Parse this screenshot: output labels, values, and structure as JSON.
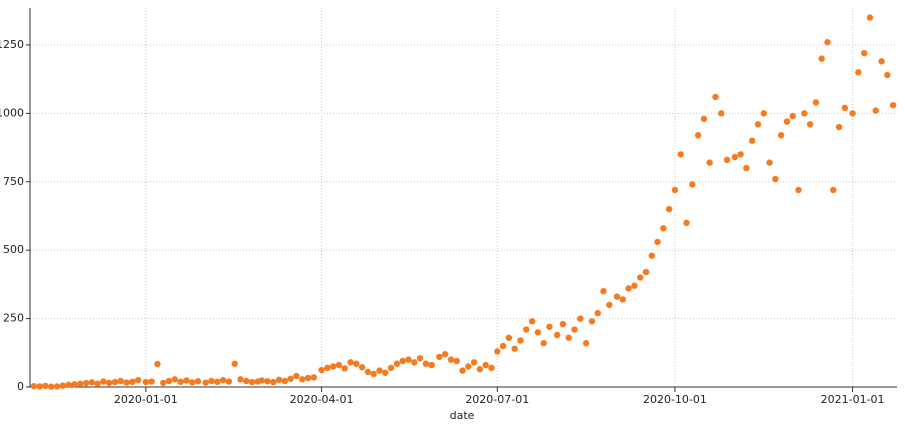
{
  "chart_data": {
    "type": "scatter",
    "x_label": "date",
    "color": "#f47b20",
    "grid": true,
    "xlim": [
      "2019-11-02",
      "2021-01-24"
    ],
    "ylim": [
      0,
      1385
    ],
    "xticks": [
      "2020-01-01",
      "2020-04-01",
      "2020-07-01",
      "2020-10-01",
      "2021-01-01"
    ],
    "yticks": [
      0,
      250,
      500,
      750,
      1000,
      1250
    ],
    "x": [
      "2019-11-04",
      "2019-11-07",
      "2019-11-10",
      "2019-11-13",
      "2019-11-16",
      "2019-11-19",
      "2019-11-22",
      "2019-11-25",
      "2019-11-28",
      "2019-12-01",
      "2019-12-04",
      "2019-12-07",
      "2019-12-10",
      "2019-12-13",
      "2019-12-16",
      "2019-12-19",
      "2019-12-22",
      "2019-12-25",
      "2019-12-28",
      "2020-01-01",
      "2020-01-04",
      "2020-01-07",
      "2020-01-10",
      "2020-01-13",
      "2020-01-16",
      "2020-01-19",
      "2020-01-22",
      "2020-01-25",
      "2020-01-28",
      "2020-02-01",
      "2020-02-04",
      "2020-02-07",
      "2020-02-10",
      "2020-02-13",
      "2020-02-16",
      "2020-02-19",
      "2020-02-22",
      "2020-02-25",
      "2020-02-28",
      "2020-03-01",
      "2020-03-04",
      "2020-03-07",
      "2020-03-10",
      "2020-03-13",
      "2020-03-16",
      "2020-03-19",
      "2020-03-22",
      "2020-03-25",
      "2020-03-28",
      "2020-04-01",
      "2020-04-04",
      "2020-04-07",
      "2020-04-10",
      "2020-04-13",
      "2020-04-16",
      "2020-04-19",
      "2020-04-22",
      "2020-04-25",
      "2020-04-28",
      "2020-05-01",
      "2020-05-04",
      "2020-05-07",
      "2020-05-10",
      "2020-05-13",
      "2020-05-16",
      "2020-05-19",
      "2020-05-22",
      "2020-05-25",
      "2020-05-28",
      "2020-06-01",
      "2020-06-04",
      "2020-06-07",
      "2020-06-10",
      "2020-06-13",
      "2020-06-16",
      "2020-06-19",
      "2020-06-22",
      "2020-06-25",
      "2020-06-28",
      "2020-07-01",
      "2020-07-04",
      "2020-07-07",
      "2020-07-10",
      "2020-07-13",
      "2020-07-16",
      "2020-07-19",
      "2020-07-22",
      "2020-07-25",
      "2020-07-28",
      "2020-08-01",
      "2020-08-04",
      "2020-08-07",
      "2020-08-10",
      "2020-08-13",
      "2020-08-16",
      "2020-08-19",
      "2020-08-22",
      "2020-08-25",
      "2020-08-28",
      "2020-09-01",
      "2020-09-04",
      "2020-09-07",
      "2020-09-10",
      "2020-09-13",
      "2020-09-16",
      "2020-09-19",
      "2020-09-22",
      "2020-09-25",
      "2020-09-28",
      "2020-10-01",
      "2020-10-04",
      "2020-10-07",
      "2020-10-10",
      "2020-10-13",
      "2020-10-16",
      "2020-10-19",
      "2020-10-22",
      "2020-10-25",
      "2020-10-28",
      "2020-11-01",
      "2020-11-04",
      "2020-11-07",
      "2020-11-10",
      "2020-11-13",
      "2020-11-16",
      "2020-11-19",
      "2020-11-22",
      "2020-11-25",
      "2020-11-28",
      "2020-12-01",
      "2020-12-04",
      "2020-12-07",
      "2020-12-10",
      "2020-12-13",
      "2020-12-16",
      "2020-12-19",
      "2020-12-22",
      "2020-12-25",
      "2020-12-28",
      "2021-01-01",
      "2021-01-04",
      "2021-01-07",
      "2021-01-10",
      "2021-01-13",
      "2021-01-16",
      "2021-01-19",
      "2021-01-22"
    ],
    "values": [
      3,
      2,
      4,
      1,
      2,
      5,
      8,
      10,
      12,
      14,
      17,
      12,
      20,
      15,
      18,
      22,
      16,
      19,
      25,
      18,
      20,
      84,
      15,
      22,
      28,
      19,
      24,
      17,
      21,
      16,
      22,
      19,
      25,
      20,
      85,
      28,
      22,
      18,
      20,
      24,
      21,
      18,
      26,
      22,
      30,
      40,
      28,
      33,
      35,
      62,
      70,
      75,
      80,
      68,
      90,
      85,
      72,
      55,
      48,
      60,
      52,
      70,
      85,
      95,
      100,
      90,
      105,
      85,
      80,
      110,
      120,
      100,
      95,
      60,
      75,
      90,
      65,
      80,
      70,
      130,
      150,
      180,
      140,
      170,
      210,
      240,
      200,
      160,
      220,
      190,
      230,
      180,
      210,
      250,
      160,
      240,
      270,
      350,
      300,
      330,
      320,
      360,
      370,
      400,
      420,
      480,
      530,
      580,
      650,
      720,
      850,
      600,
      740,
      920,
      980,
      820,
      1060,
      1000,
      830,
      840,
      850,
      800,
      900,
      960,
      1000,
      820,
      760,
      920,
      970,
      990,
      720,
      1000,
      960,
      1040,
      1200,
      1260,
      720,
      950,
      1020,
      1000,
      1150,
      1220,
      1350,
      1010,
      1190,
      1140,
      1030
    ]
  }
}
